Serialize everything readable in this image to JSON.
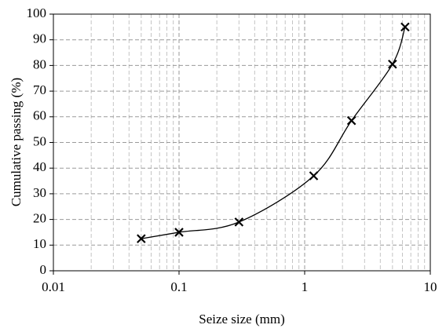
{
  "chart_data": {
    "type": "line",
    "xlabel": "Seize size (mm)",
    "ylabel": "Cumulative passing (%)",
    "x": [
      0.05,
      0.1,
      0.3,
      1.18,
      2.36,
      5,
      6.3
    ],
    "series": [
      {
        "color": "#000000",
        "marker": "x",
        "smooth": true,
        "values": [
          12.5,
          15,
          19,
          37,
          58.5,
          80.5,
          95
        ]
      }
    ],
    "xscale": "log",
    "xlim": [
      0.01,
      10
    ],
    "xticks": [
      0.01,
      0.1,
      1,
      10
    ],
    "xminorticks": [
      0.02,
      0.03,
      0.04,
      0.05,
      0.06,
      0.07,
      0.08,
      0.09,
      0.2,
      0.3,
      0.4,
      0.5,
      0.6,
      0.7,
      0.8,
      0.9,
      2,
      3,
      4,
      5,
      6,
      7,
      8,
      9
    ],
    "ylim": [
      0,
      100
    ],
    "yticks": [
      0,
      10,
      20,
      30,
      40,
      50,
      60,
      70,
      80,
      90,
      100
    ],
    "grid": true
  }
}
